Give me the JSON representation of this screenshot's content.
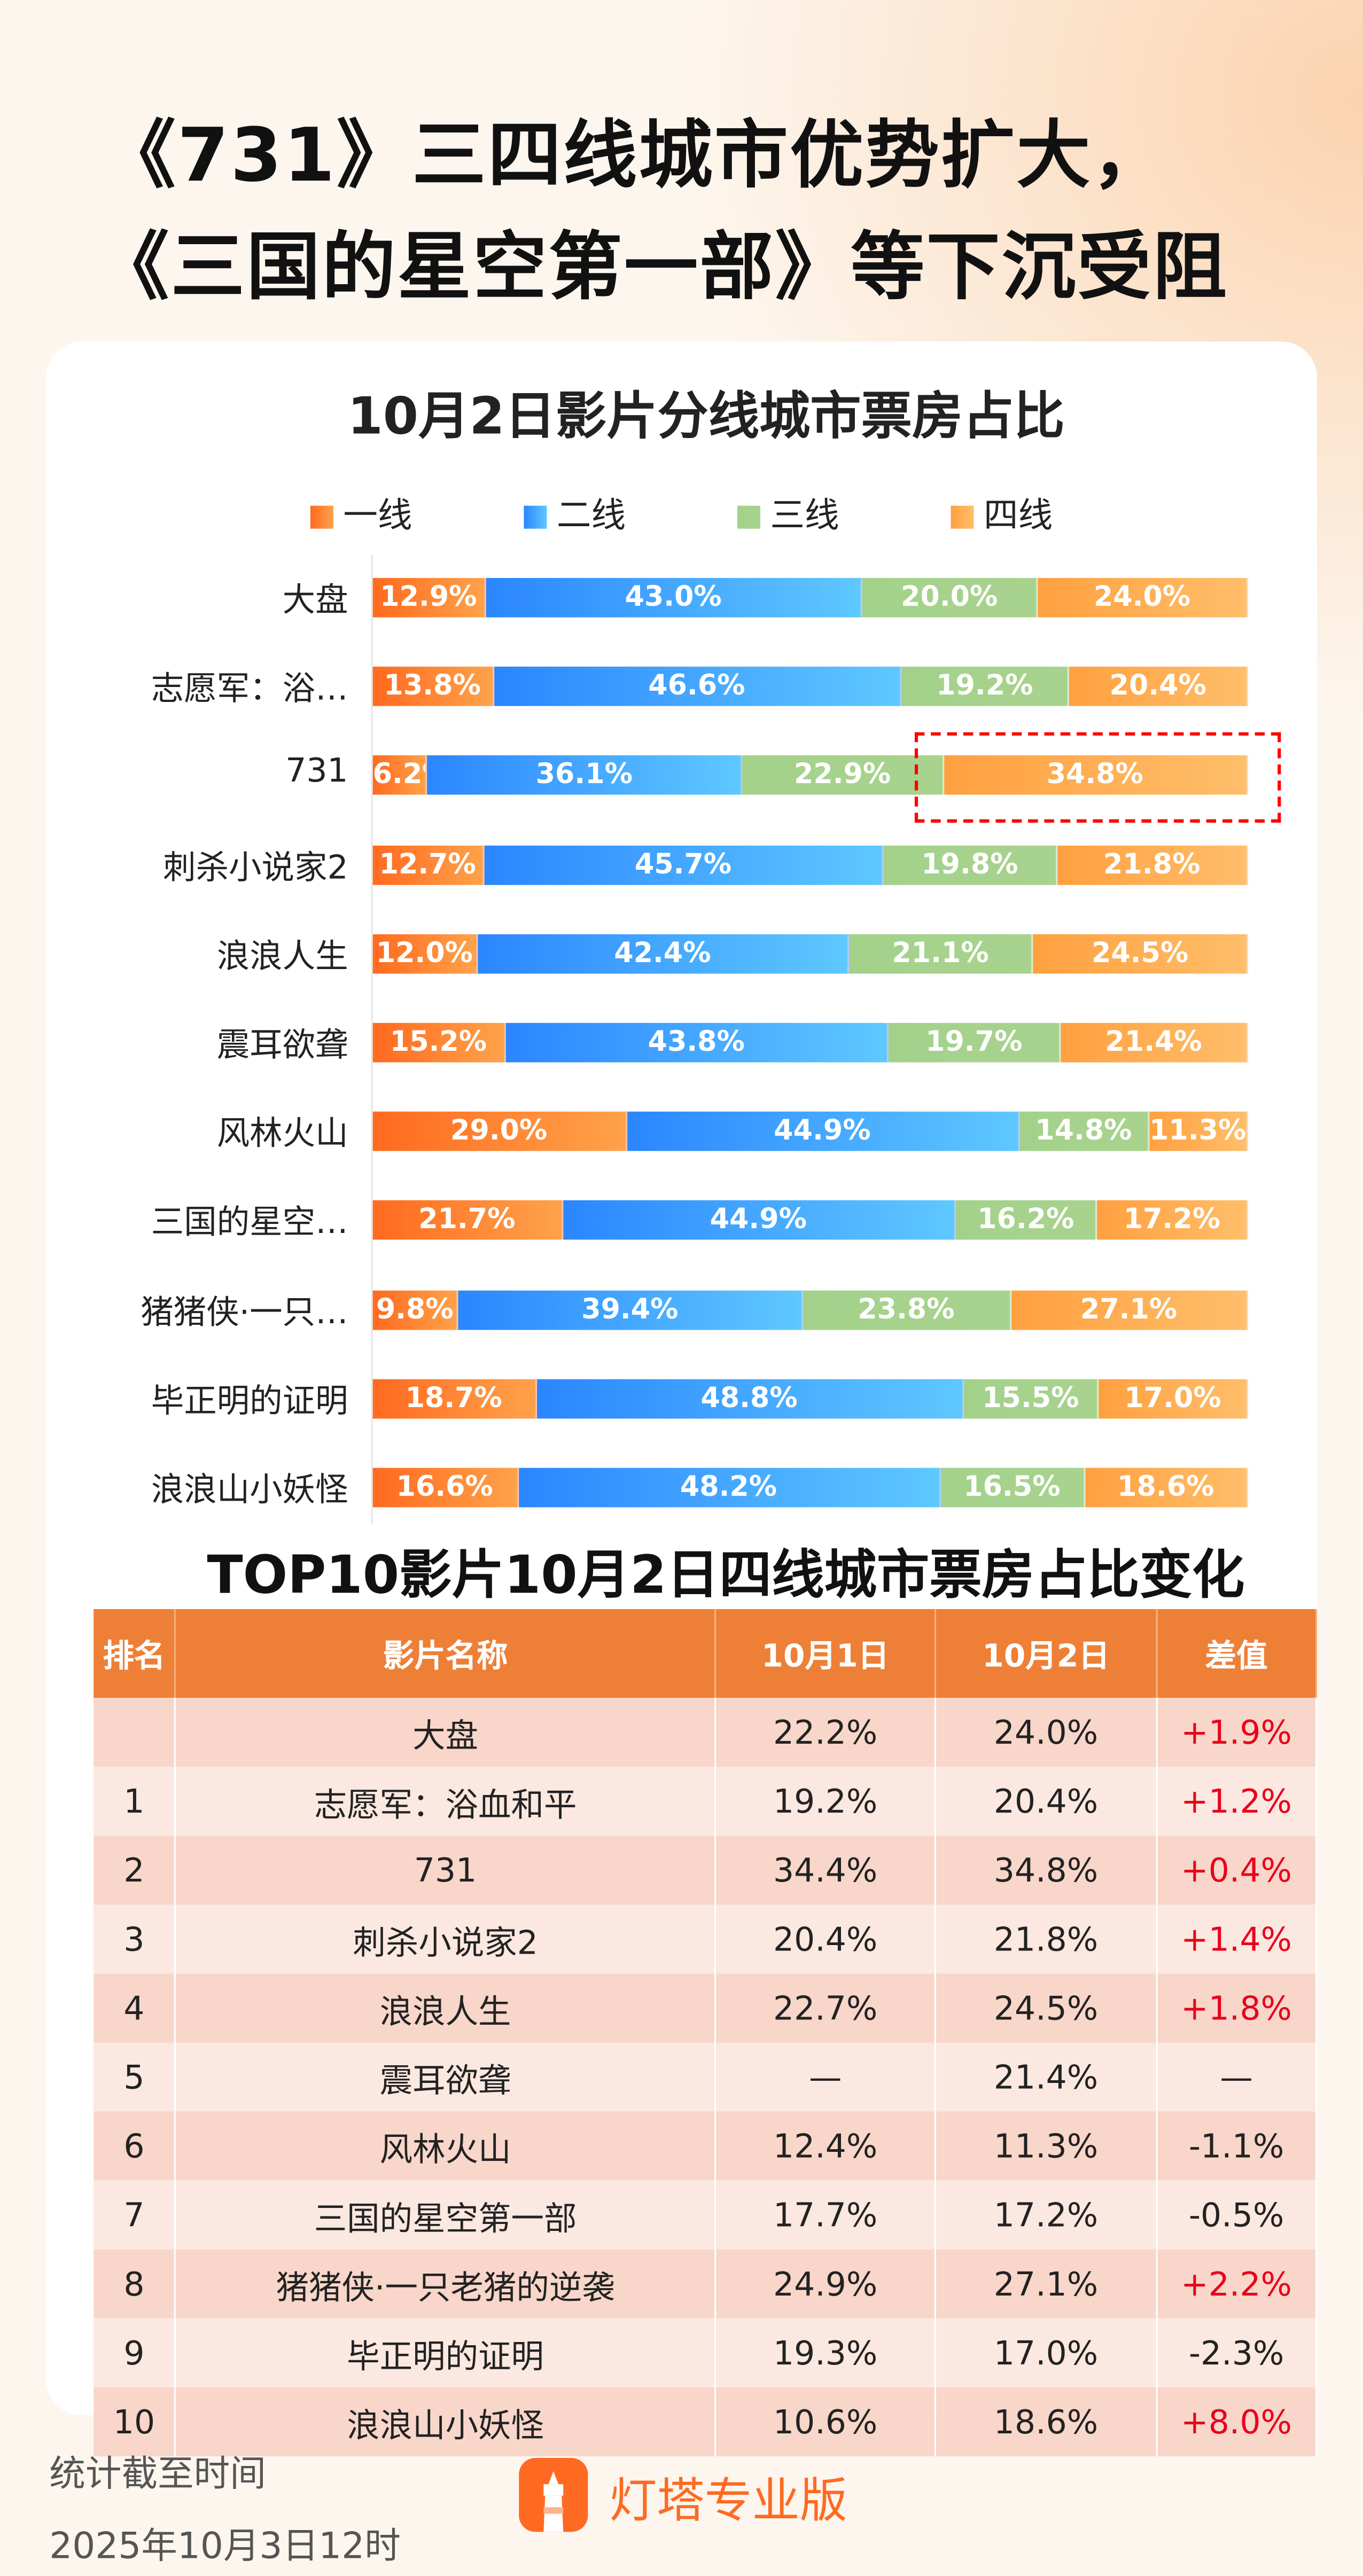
{
  "header": {
    "title_line1": "《731》三四线城市优势扩大，",
    "title_line2": "《三国的星空第一部》等下沉受阻"
  },
  "chart_data": {
    "type": "bar",
    "orientation": "horizontal",
    "stacked": true,
    "title": "10月2日影片分线城市票房占比",
    "legend_position": "top",
    "series": [
      {
        "name": "一线",
        "color": "#ff6a1f",
        "values": [
          12.9,
          13.8,
          6.2,
          12.7,
          12.0,
          15.2,
          29.0,
          21.7,
          9.8,
          18.7,
          16.6
        ]
      },
      {
        "name": "二线",
        "color": "#2b86ff",
        "values": [
          43.0,
          46.6,
          36.1,
          45.7,
          42.4,
          43.8,
          44.9,
          44.9,
          39.4,
          48.8,
          48.2
        ]
      },
      {
        "name": "三线",
        "color": "#a3d18a",
        "values": [
          20.0,
          19.2,
          22.9,
          19.8,
          21.1,
          19.7,
          14.8,
          16.2,
          23.8,
          15.5,
          16.5
        ]
      },
      {
        "name": "四线",
        "color": "#ffa040",
        "values": [
          24.0,
          20.4,
          34.8,
          21.8,
          24.5,
          21.4,
          11.3,
          17.2,
          27.1,
          17.0,
          18.6
        ]
      }
    ],
    "categories": [
      "大盘",
      "志愿军：浴…",
      "731",
      "刺杀小说家2",
      "浪浪人生",
      "震耳欲聋",
      "风林火山",
      "三国的星空…",
      "猪猪侠·一只…",
      "毕正明的证明",
      "浪浪山小妖怪"
    ],
    "highlight": {
      "category": "731",
      "series": "四线"
    }
  },
  "table": {
    "title": "TOP10影片10月2日四线城市票房占比变化",
    "headers": [
      "排名",
      "影片名称",
      "10月1日",
      "10月2日",
      "差值"
    ],
    "rows": [
      [
        "",
        "大盘",
        "22.2%",
        "24.0%",
        "+1.9%"
      ],
      [
        "1",
        "志愿军：浴血和平",
        "19.2%",
        "20.4%",
        "+1.2%"
      ],
      [
        "2",
        "731",
        "34.4%",
        "34.8%",
        "+0.4%"
      ],
      [
        "3",
        "刺杀小说家2",
        "20.4%",
        "21.8%",
        "+1.4%"
      ],
      [
        "4",
        "浪浪人生",
        "22.7%",
        "24.5%",
        "+1.8%"
      ],
      [
        "5",
        "震耳欲聋",
        "—",
        "21.4%",
        "—"
      ],
      [
        "6",
        "风林火山",
        "12.4%",
        "11.3%",
        "-1.1%"
      ],
      [
        "7",
        "三国的星空第一部",
        "17.7%",
        "17.2%",
        "-0.5%"
      ],
      [
        "8",
        "猪猪侠·一只老猪的逆袭",
        "24.9%",
        "27.1%",
        "+2.2%"
      ],
      [
        "9",
        "毕正明的证明",
        "19.3%",
        "17.0%",
        "-2.3%"
      ],
      [
        "10",
        "浪浪山小妖怪",
        "10.6%",
        "18.6%",
        "+8.0%"
      ]
    ]
  },
  "footer": {
    "label": "统计截至时间",
    "time": "2025年10月3日12时",
    "brand": "灯塔专业版",
    "brand_color": "#ff6a22"
  }
}
